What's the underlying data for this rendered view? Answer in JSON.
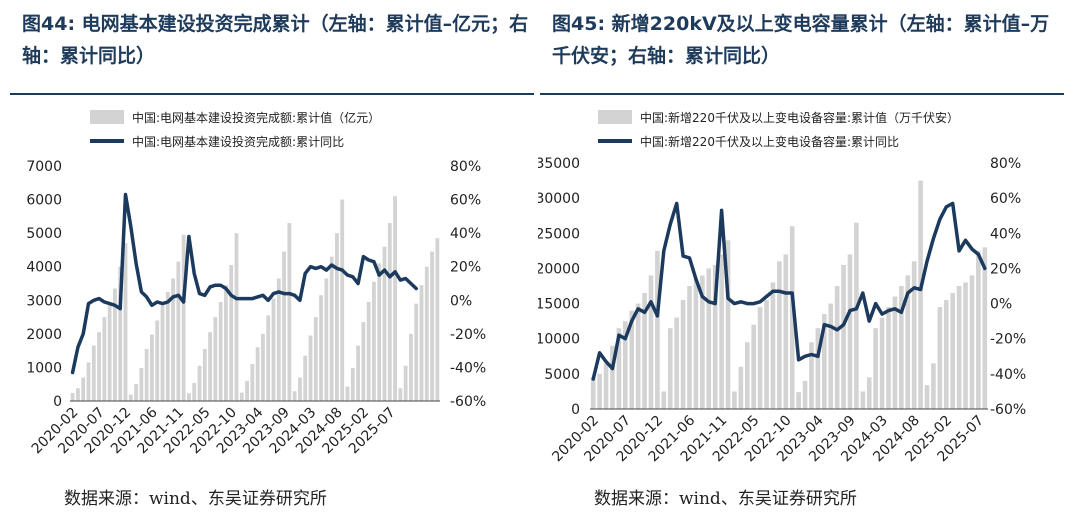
{
  "colors": {
    "bar": "#d3d3d3",
    "line": "#1c3a5e",
    "title": "#1f3b5c"
  },
  "chart_data": [
    {
      "type": "bar+line",
      "title": "图44: 电网基本建设投资完成累计（左轴：累计值–亿元；右轴：累计同比）",
      "source": "数据来源：wind、东吴证券研究所",
      "legend": [
        "中国:电网基本建设投资完成额:累计值（亿元）",
        "中国:电网基本建设投资完成额:累计同比"
      ],
      "legend_position": "top",
      "y_left": {
        "min": 0,
        "max": 7000,
        "step": 1000,
        "ticks": [
          "0",
          "1000",
          "2000",
          "3000",
          "4000",
          "5000",
          "6000",
          "7000"
        ]
      },
      "y_right": {
        "min": -60,
        "max": 80,
        "step": 20,
        "ticks": [
          "-60%",
          "-40%",
          "-20%",
          "0%",
          "20%",
          "40%",
          "60%",
          "80%"
        ]
      },
      "x_tick_labels": [
        "2020-02",
        "2020-07",
        "2020-12",
        "2021-06",
        "2021-11",
        "2022-05",
        "2022-10",
        "2023-04",
        "2023-09",
        "2024-03",
        "2024-08",
        "2025-02",
        "2025-07"
      ],
      "x_tick_index": [
        0,
        5,
        10,
        15,
        20,
        25,
        30,
        35,
        40,
        45,
        50,
        55,
        60
      ],
      "bars": [
        240,
        380,
        700,
        1150,
        1650,
        2050,
        2500,
        2850,
        3350,
        4000,
        4700,
        190,
        510,
        980,
        1550,
        1980,
        2400,
        2850,
        3250,
        3650,
        4150,
        4950,
        230,
        540,
        1050,
        1550,
        2050,
        2500,
        2950,
        3450,
        4050,
        5000,
        250,
        600,
        1100,
        1600,
        2000,
        2550,
        3050,
        3650,
        4450,
        5300,
        290,
        700,
        1350,
        1950,
        2500,
        3150,
        3650,
        4300,
        5000,
        6000,
        430,
        980,
        1650,
        2350,
        2950,
        3550,
        4100,
        4600,
        5300,
        6100,
        380,
        1050,
        2000,
        2900,
        3450,
        4000,
        4450,
        4850
      ],
      "line": [
        -43,
        -28,
        -20,
        -2,
        0,
        1,
        -1,
        -2,
        -3,
        -5,
        63,
        44,
        22,
        5,
        2,
        -3,
        -1,
        -2,
        -1,
        2,
        3,
        -1,
        38,
        16,
        4,
        3,
        8,
        9,
        9,
        7,
        3,
        1,
        1,
        1,
        1,
        2,
        3,
        0,
        4,
        5,
        4,
        4,
        3,
        0,
        16,
        20,
        19,
        20,
        18,
        21,
        19,
        18,
        15,
        14,
        10,
        26,
        24,
        23,
        15,
        18,
        14,
        17,
        12,
        13,
        10,
        7
      ]
    },
    {
      "type": "bar+line",
      "title": "图45: 新增220kV及以上变电容量累计（左轴：累计值–万千伏安；右轴：累计同比）",
      "source": "数据来源：wind、东吴证券研究所",
      "legend": [
        "中国:新增220千伏及以上变电设备容量:累计值（万千伏安）",
        "中国:新增220千伏及以上变电设备容量:累计同比"
      ],
      "legend_position": "top",
      "y_left": {
        "min": 0,
        "max": 35000,
        "step": 5000,
        "ticks": [
          "0",
          "5000",
          "10000",
          "15000",
          "20000",
          "25000",
          "30000",
          "35000"
        ]
      },
      "y_right": {
        "min": -60,
        "max": 80,
        "step": 20,
        "ticks": [
          "-60%",
          "-40%",
          "-20%",
          "0%",
          "20%",
          "40%",
          "60%",
          "80%"
        ]
      },
      "x_tick_labels": [
        "2020-02",
        "2020-07",
        "2020-12",
        "2021-06",
        "2021-11",
        "2022-05",
        "2022-10",
        "2023-04",
        "2023-09",
        "2024-03",
        "2024-08",
        "2025-02",
        "2025-07"
      ],
      "x_tick_index": [
        0,
        5,
        10,
        15,
        20,
        25,
        30,
        35,
        40,
        45,
        50,
        55,
        60
      ],
      "bars": [
        4500,
        5000,
        6500,
        9000,
        11500,
        12500,
        14000,
        15000,
        16500,
        19000,
        22500,
        2500,
        11500,
        13000,
        15500,
        17500,
        18500,
        19000,
        20000,
        20500,
        22000,
        24000,
        2500,
        6000,
        9500,
        12000,
        14500,
        15500,
        18000,
        21000,
        22000,
        26000,
        2400,
        4000,
        9500,
        11500,
        13500,
        15000,
        17500,
        20500,
        22000,
        26500,
        2500,
        4500,
        11500,
        13000,
        14500,
        16000,
        17500,
        19000,
        21000,
        32500,
        3400,
        6500,
        14500,
        15500,
        16500,
        17500,
        18000,
        19000,
        22500,
        23000
      ],
      "line": [
        -43,
        -28,
        -33,
        -37,
        -18,
        -20,
        -10,
        -3,
        -5,
        1,
        -7,
        30,
        45,
        57,
        27,
        26,
        14,
        4,
        1,
        0,
        53,
        3,
        0,
        1,
        0,
        0,
        1,
        4,
        7,
        7,
        6,
        6,
        -32,
        -30,
        -29,
        -30,
        -12,
        -13,
        -15,
        -12,
        -4,
        -3,
        6,
        -10,
        0,
        -6,
        -4,
        -3,
        -5,
        6,
        9,
        8,
        24,
        37,
        48,
        55,
        57,
        30,
        36,
        31,
        28,
        20
      ]
    }
  ]
}
